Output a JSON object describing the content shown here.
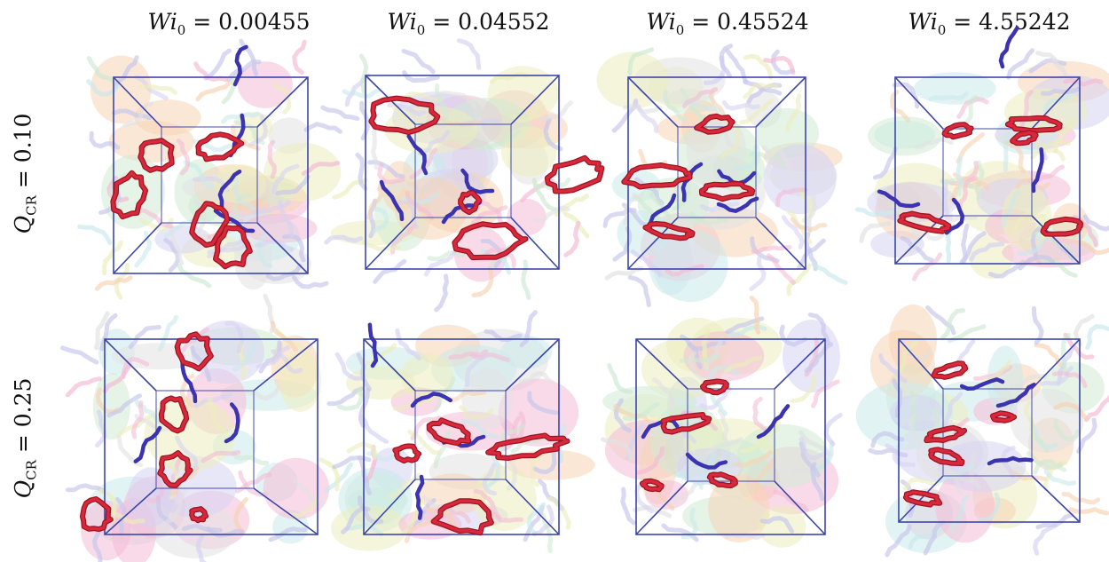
{
  "columns": [
    {
      "symbol": "Wi",
      "subscript": "0",
      "value": "0.00455"
    },
    {
      "symbol": "Wi",
      "subscript": "0",
      "value": "0.04552"
    },
    {
      "symbol": "Wi",
      "subscript": "0",
      "value": "0.45524"
    },
    {
      "symbol": "Wi",
      "subscript": "0",
      "value": "4.55242"
    }
  ],
  "rows": [
    {
      "symbol": "Q",
      "subscript": "CR",
      "value": "0.10"
    },
    {
      "symbol": "Q",
      "subscript": "CR",
      "value": "0.25"
    }
  ],
  "colors": {
    "box_edge": "#3c46a8",
    "ring_chain": "#d8283c",
    "ring_chain_dark": "#9b1420",
    "linear_chain": "#3b33b0",
    "background_melt": [
      "#f0a6c8",
      "#c9c4ee",
      "#e6e8a6",
      "#bfe3c4",
      "#d9d9d9",
      "#f4c59c",
      "#b9e2e6"
    ]
  }
}
